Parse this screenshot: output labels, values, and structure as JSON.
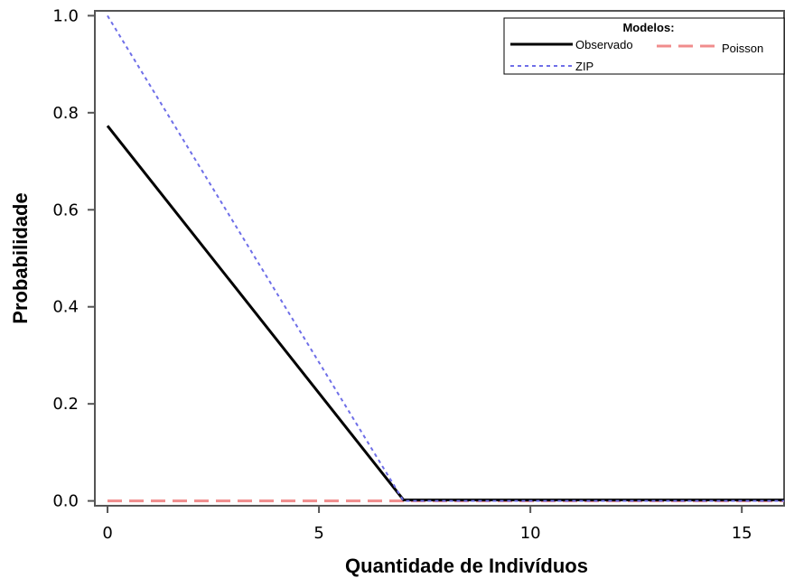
{
  "chart_data": {
    "type": "line",
    "title": "",
    "xlabel": "Quantidade de Indivíduos",
    "ylabel": "Probabilidade",
    "xlim": [
      -0.3,
      16
    ],
    "ylim": [
      -0.01,
      1.01
    ],
    "xticks": [
      0,
      5,
      10,
      15
    ],
    "xtick_labels": [
      "0",
      "5",
      "10",
      "15"
    ],
    "yticks": [
      0,
      0.2,
      0.4,
      0.6,
      0.8,
      1.0
    ],
    "ytick_labels": [
      "0.0",
      "0.2",
      "0.4",
      "0.6",
      "0.8",
      "1.0"
    ],
    "grid": false,
    "legend": {
      "title": "Modelos:",
      "placement": "top-right"
    },
    "series": [
      {
        "name": "Observado",
        "color": "#000000",
        "style": "solid",
        "x": [
          0,
          7,
          16
        ],
        "y": [
          0.773,
          0.002,
          0.002
        ]
      },
      {
        "name": "Poisson",
        "color": "#f08c8c",
        "style": "dashed",
        "x": [
          0,
          16
        ],
        "y": [
          0.0,
          0.0
        ]
      },
      {
        "name": "ZIP",
        "color": "#6f6fe8",
        "style": "dotted",
        "x": [
          0,
          7,
          16
        ],
        "y": [
          1.0,
          0.0,
          0.0
        ]
      }
    ]
  }
}
